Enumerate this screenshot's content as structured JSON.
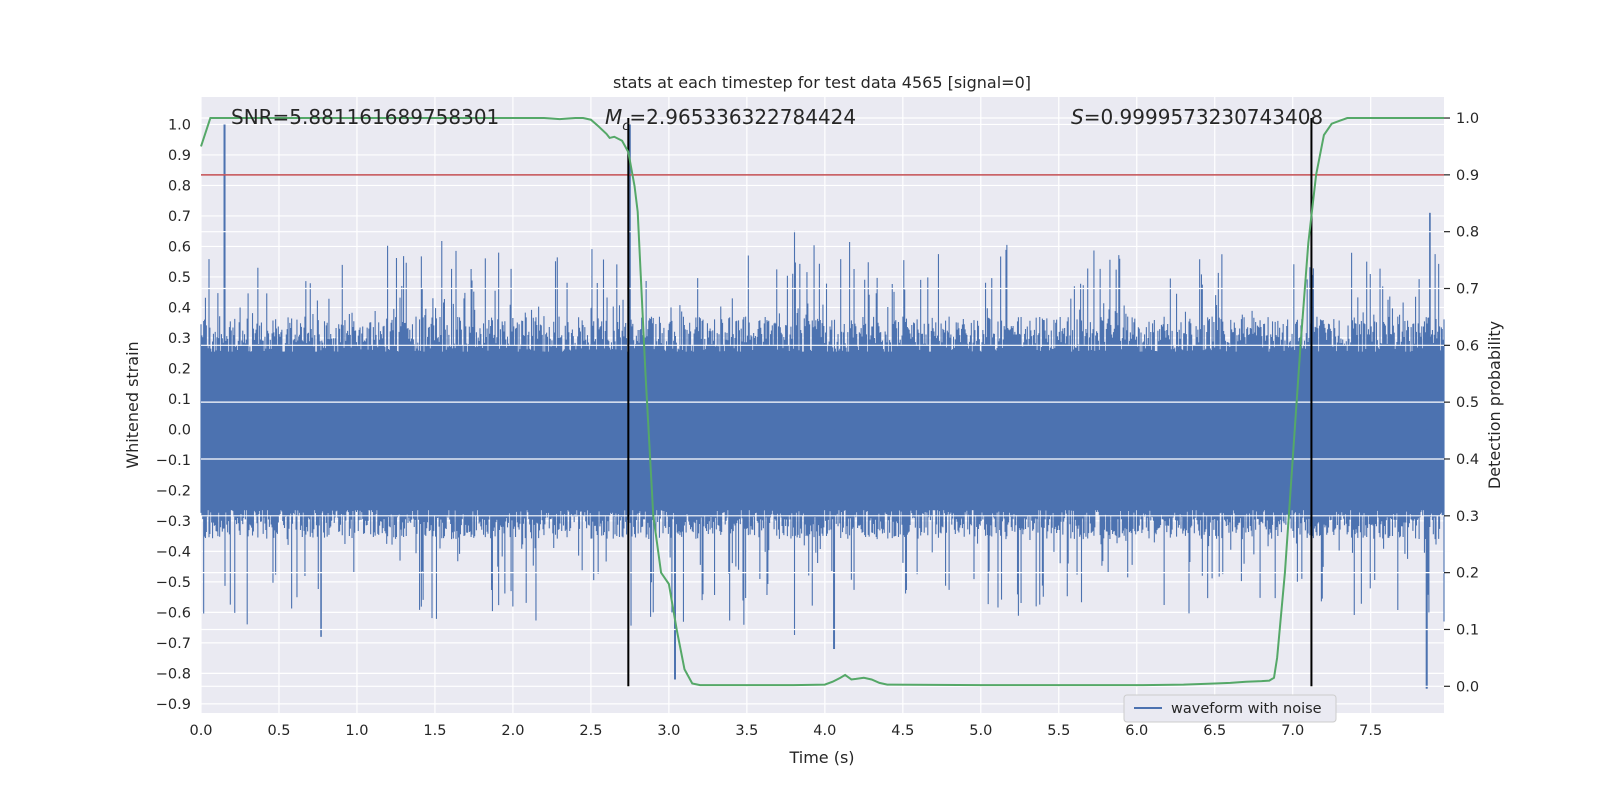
{
  "chart_data": {
    "type": "line",
    "title": "stats at each timestep for test data 4565 [signal=0]",
    "xlabel": "Time (s)",
    "ylabel": "Whitened strain",
    "y2label": "Detection probability",
    "xlim": [
      0.0,
      7.97
    ],
    "ylim": [
      -0.93,
      1.09
    ],
    "y2lim": [
      -0.047,
      1.037
    ],
    "x_ticks": [
      "0.0",
      "0.5",
      "1.0",
      "1.5",
      "2.0",
      "2.5",
      "3.0",
      "3.5",
      "4.0",
      "4.5",
      "5.0",
      "5.5",
      "6.0",
      "6.5",
      "7.0",
      "7.5"
    ],
    "x_tick_values": [
      0.0,
      0.5,
      1.0,
      1.5,
      2.0,
      2.5,
      3.0,
      3.5,
      4.0,
      4.5,
      5.0,
      5.5,
      6.0,
      6.5,
      7.0,
      7.5
    ],
    "y_ticks": [
      "1.0",
      "0.9",
      "0.8",
      "0.7",
      "0.6",
      "0.5",
      "0.4",
      "0.3",
      "0.2",
      "0.1",
      "0.0",
      "−0.1",
      "−0.2",
      "−0.3",
      "−0.4",
      "−0.5",
      "−0.6",
      "−0.7",
      "−0.8",
      "−0.9"
    ],
    "y_tick_values": [
      1.0,
      0.9,
      0.8,
      0.7,
      0.6,
      0.5,
      0.4,
      0.3,
      0.2,
      0.1,
      0.0,
      -0.1,
      -0.2,
      -0.3,
      -0.4,
      -0.5,
      -0.6,
      -0.7,
      -0.8,
      -0.9
    ],
    "y2_ticks": [
      "1.0",
      "0.9",
      "0.8",
      "0.7",
      "0.6",
      "0.5",
      "0.4",
      "0.3",
      "0.2",
      "0.1",
      "0.0"
    ],
    "y2_tick_values": [
      1.0,
      0.9,
      0.8,
      0.7,
      0.6,
      0.5,
      0.4,
      0.3,
      0.2,
      0.1,
      0.0
    ],
    "annotations": {
      "snr": "SNR=5.881161689758301",
      "mc_symbol": "M",
      "mc_sub": "c",
      "mc_value": "=2.965336322784424",
      "s_symbol": "S",
      "s_value": "=0.9999573230743408"
    },
    "legend": {
      "label": "waveform with noise",
      "placement": "lower-right"
    },
    "threshold": {
      "y2": 0.9,
      "color": "#c44e52"
    },
    "vlines": [
      {
        "x": 2.74,
        "y2_range": [
          0.0,
          1.0
        ],
        "color": "#000000"
      },
      {
        "x": 7.12,
        "y2_range": [
          0.0,
          1.0
        ],
        "color": "#000000"
      }
    ],
    "series": [
      {
        "name": "waveform with noise",
        "axis": "left",
        "color": "#4c72b0",
        "description": "noisy whitened strain, dense band roughly between -0.35 and 0.35 with spikes up to 1.0 and down to -0.85",
        "peaks": [
          {
            "x": 0.15,
            "y": 1.0
          },
          {
            "x": 0.77,
            "y": -0.68
          },
          {
            "x": 2.75,
            "y": 1.0
          },
          {
            "x": 3.04,
            "y": -0.82
          },
          {
            "x": 4.06,
            "y": -0.72
          },
          {
            "x": 7.86,
            "y": -0.85
          },
          {
            "x": 7.88,
            "y": 0.71
          }
        ]
      },
      {
        "name": "Detection probability",
        "axis": "right",
        "color": "#55a868",
        "x": [
          0.0,
          0.06,
          0.2,
          0.5,
          1.0,
          1.5,
          2.0,
          2.2,
          2.3,
          2.4,
          2.45,
          2.5,
          2.55,
          2.6,
          2.62,
          2.65,
          2.7,
          2.74,
          2.78,
          2.8,
          2.85,
          2.9,
          2.95,
          3.0,
          3.05,
          3.1,
          3.15,
          3.2,
          3.5,
          3.8,
          4.0,
          4.05,
          4.1,
          4.13,
          4.17,
          4.2,
          4.25,
          4.3,
          4.35,
          4.4,
          5.0,
          5.5,
          6.0,
          6.3,
          6.5,
          6.6,
          6.7,
          6.8,
          6.85,
          6.88,
          6.9,
          6.95,
          7.0,
          7.05,
          7.1,
          7.15,
          7.2,
          7.25,
          7.3,
          7.35,
          7.5,
          7.97
        ],
        "values": [
          0.95,
          1.0,
          1.0,
          1.0,
          1.0,
          1.0,
          1.0,
          1.0,
          0.998,
          1.0,
          1.0,
          0.997,
          0.985,
          0.972,
          0.965,
          0.967,
          0.96,
          0.94,
          0.88,
          0.835,
          0.55,
          0.3,
          0.2,
          0.18,
          0.1,
          0.03,
          0.005,
          0.002,
          0.002,
          0.002,
          0.003,
          0.008,
          0.015,
          0.02,
          0.012,
          0.013,
          0.015,
          0.012,
          0.006,
          0.003,
          0.002,
          0.002,
          0.002,
          0.003,
          0.005,
          0.006,
          0.008,
          0.009,
          0.01,
          0.015,
          0.05,
          0.2,
          0.4,
          0.6,
          0.78,
          0.9,
          0.97,
          0.99,
          0.995,
          1.0,
          1.0,
          1.0
        ]
      }
    ]
  }
}
